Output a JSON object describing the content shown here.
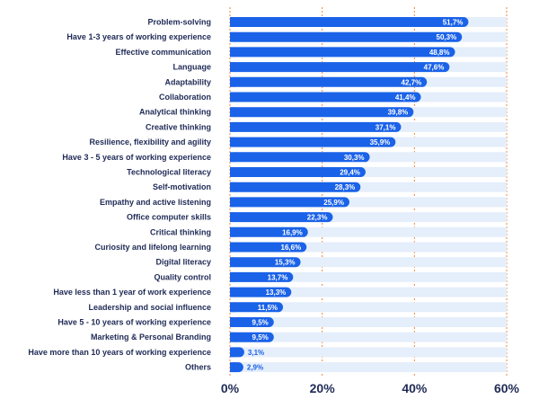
{
  "chart_data": {
    "type": "bar",
    "orientation": "horizontal",
    "title": "",
    "xlabel": "",
    "ylabel": "",
    "xlim": [
      0,
      60
    ],
    "x_ticks": [
      0,
      20,
      40,
      60
    ],
    "x_tick_labels": [
      "0%",
      "20%",
      "40%",
      "60%"
    ],
    "grid": "vertical dotted orange at ticks",
    "legend": "none",
    "categories": [
      "Problem-solving",
      "Have 1-3 years of working experience",
      "Effective communication",
      "Language",
      "Adaptability",
      "Collaboration",
      "Analytical thinking",
      "Creative thinking",
      "Resilience, flexibility and agility",
      "Have 3 - 5 years of working experience",
      "Technological literacy",
      "Self-motivation",
      "Empathy and active listening",
      "Office computer skills",
      "Critical thinking",
      "Curiosity and lifelong learning",
      "Digital literacy",
      "Quality control",
      "Have less than 1 year of work experience",
      "Leadership and social influence",
      "Have 5 - 10 years of working experience",
      "Marketing & Personal Branding",
      "Have more than 10 years of working experience",
      "Others"
    ],
    "values": [
      51.7,
      50.3,
      48.8,
      47.6,
      42.7,
      41.4,
      39.8,
      37.1,
      35.9,
      30.3,
      29.4,
      28.3,
      25.9,
      22.3,
      16.9,
      16.6,
      15.3,
      13.7,
      13.3,
      11.5,
      9.5,
      9.5,
      3.1,
      2.9
    ],
    "value_labels": [
      "51,7%",
      "50,3%",
      "48,8%",
      "47,6%",
      "42,7%",
      "41,4%",
      "39,8%",
      "37,1%",
      "35,9%",
      "30,3%",
      "29,4%",
      "28,3%",
      "25,9%",
      "22,3%",
      "16,9%",
      "16,6%",
      "15,3%",
      "13,7%",
      "13,3%",
      "11,5%",
      "9,5%",
      "9,5%",
      "3,1%",
      "2,9%"
    ],
    "colors": {
      "bar": "#1a62e8",
      "track": "#e5eefb",
      "grid": "#f0853a",
      "label": "#1f2a56",
      "value_text": "#ffffff"
    }
  }
}
